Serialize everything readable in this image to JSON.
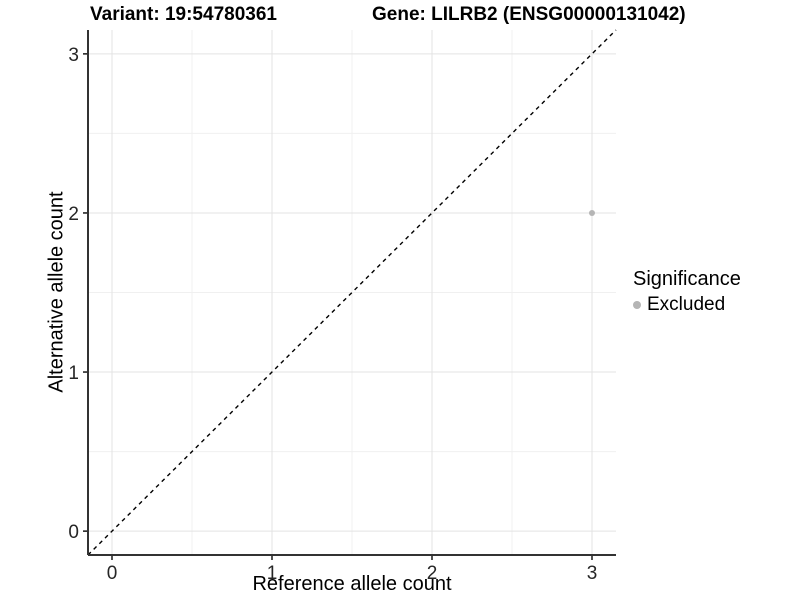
{
  "chart_data": {
    "type": "scatter",
    "title_left": "Variant: 19:54780361",
    "title_right": "Gene: LILRB2 (ENSG00000131042)",
    "xlabel": "Reference allele count",
    "ylabel": "Alternative allele count",
    "xlim": [
      -0.15,
      3.15
    ],
    "ylim": [
      -0.15,
      3.15
    ],
    "xticks": [
      0,
      1,
      2,
      3
    ],
    "yticks": [
      0,
      1,
      2,
      3
    ],
    "minor_ticks_x": [
      0.5,
      1.5,
      2.5
    ],
    "minor_ticks_y": [
      0.5,
      1.5,
      2.5
    ],
    "grid": true,
    "series": [
      {
        "name": "Excluded",
        "color": "#b5b5b5",
        "points": [
          {
            "x": 3,
            "y": 2
          }
        ]
      }
    ],
    "reference_line": {
      "description": "identity line y = x",
      "slope": 1,
      "intercept": 0,
      "style": "dashed",
      "color": "#000000"
    },
    "legend": {
      "title": "Significance",
      "position": "right",
      "entries": [
        {
          "label": "Excluded",
          "color": "#b5b5b5"
        }
      ]
    },
    "colors": {
      "background": "#ffffff",
      "axis_line": "#333333",
      "tick_mark": "#333333",
      "tick_label": "#262626",
      "grid_major": "#e3e3e3",
      "grid_minor": "#f0f0f0"
    }
  }
}
